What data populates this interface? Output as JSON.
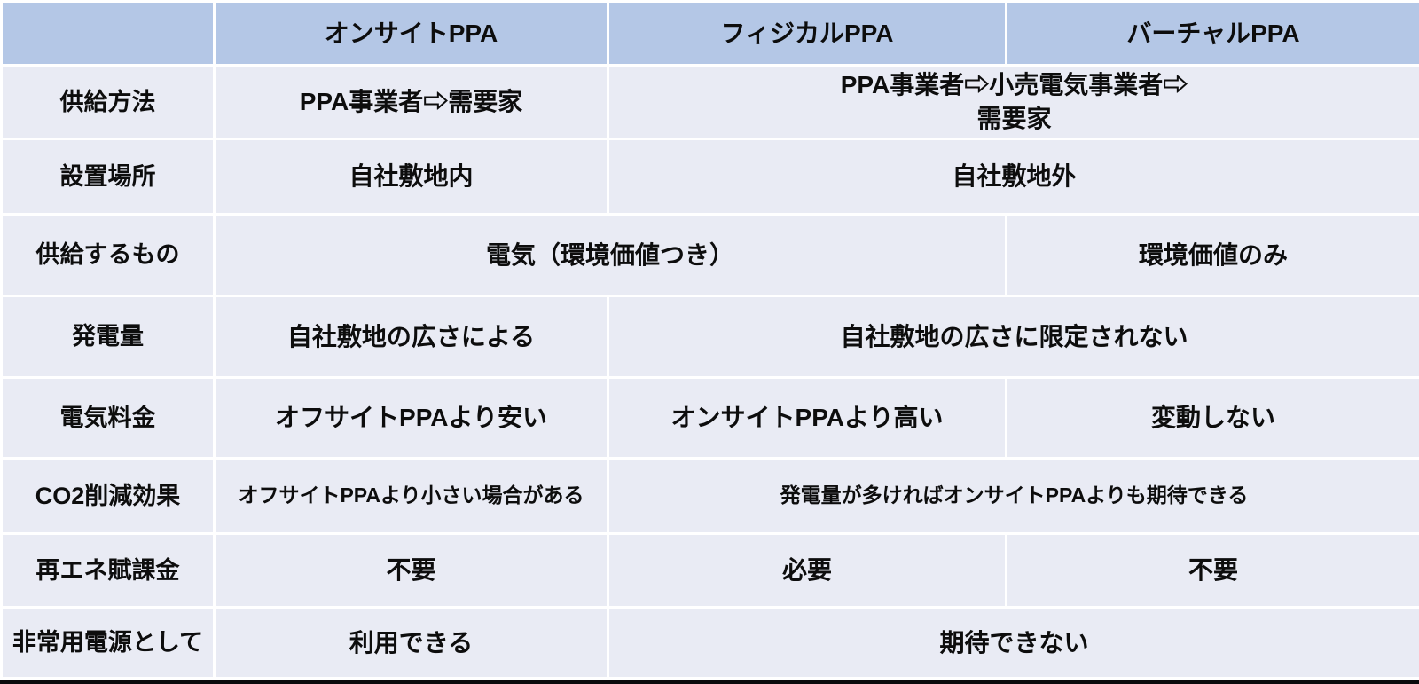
{
  "colors": {
    "header_bg": "#b4c7e6",
    "body_bg": "#e9ebf4",
    "gridline": "#ffffff",
    "bottom_bar": "#0a0a0c",
    "text": "#0d0d0d"
  },
  "chart_data": {
    "type": "table",
    "title": "",
    "column_headers": [
      "",
      "オンサイトPPA",
      "フィジカルPPA",
      "バーチャルPPA"
    ],
    "rows": [
      {
        "label": "供給方法",
        "cells": [
          {
            "text": "PPA事業者⇨需要家",
            "span": 1
          },
          {
            "text": "PPA事業者⇨小売電気事業者⇨\n需要家",
            "span": 2
          }
        ]
      },
      {
        "label": "設置場所",
        "cells": [
          {
            "text": "自社敷地内",
            "span": 1
          },
          {
            "text": "自社敷地外",
            "span": 2
          }
        ]
      },
      {
        "label": "供給するもの",
        "cells": [
          {
            "text": "電気（環境価値つき）",
            "span": 2
          },
          {
            "text": "環境価値のみ",
            "span": 1
          }
        ]
      },
      {
        "label": "発電量",
        "cells": [
          {
            "text": "自社敷地の広さによる",
            "span": 1
          },
          {
            "text": "自社敷地の広さに限定されない",
            "span": 2
          }
        ]
      },
      {
        "label": "電気料金",
        "cells": [
          {
            "text": "オフサイトPPAより安い",
            "span": 1
          },
          {
            "text": "オンサイトPPAより高い",
            "span": 1
          },
          {
            "text": "変動しない",
            "span": 1
          }
        ]
      },
      {
        "label": "CO2削減効果",
        "cells": [
          {
            "text": "オフサイトPPAより小さい場合がある",
            "span": 1
          },
          {
            "text": "発電量が多ければオンサイトPPAよりも期待できる",
            "span": 2
          }
        ]
      },
      {
        "label": "再エネ賦課金",
        "cells": [
          {
            "text": "不要",
            "span": 1
          },
          {
            "text": "必要",
            "span": 1
          },
          {
            "text": "不要",
            "span": 1
          }
        ]
      },
      {
        "label": "非常用電源として",
        "cells": [
          {
            "text": "利用できる",
            "span": 1
          },
          {
            "text": "期待できない",
            "span": 2
          }
        ]
      }
    ]
  }
}
